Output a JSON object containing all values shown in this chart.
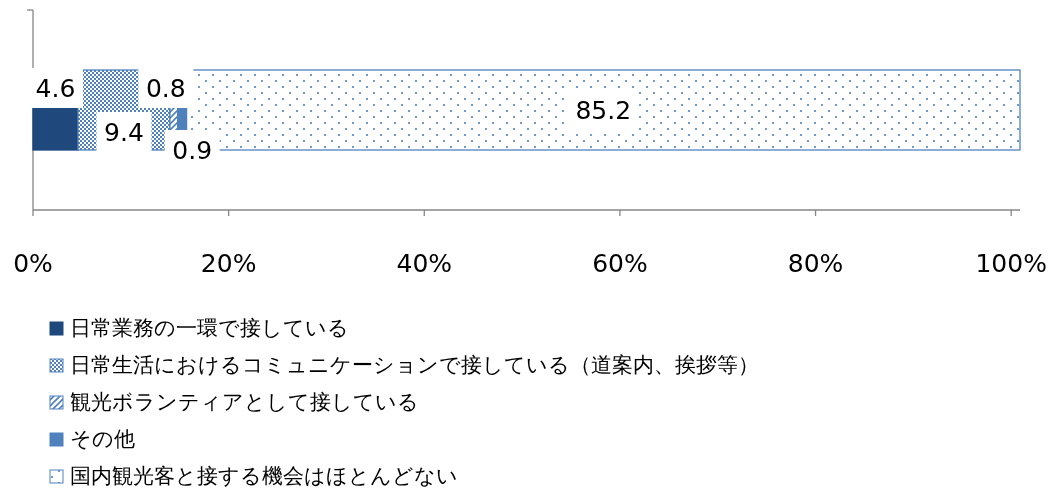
{
  "chart_data": {
    "type": "bar",
    "orientation": "horizontal",
    "stacked": true,
    "categories": [
      null
    ],
    "series": [
      {
        "name": "日常業務の一環で接している",
        "color": "#1f497d",
        "values": [
          4.6
        ]
      },
      {
        "name": "日常生活におけるコミュニケーションで接している（道案内、挨拶等）",
        "color": "#4f81bd",
        "values": [
          9.4
        ]
      },
      {
        "name": "観光ボランティアとして接している",
        "color": "#4f81bd",
        "values": [
          0.8
        ]
      },
      {
        "name": "その他",
        "color": "#4f81bd",
        "values": [
          0.9
        ]
      },
      {
        "name": "国内観光客と接する機会はほとんどない",
        "color": "#4f81bd",
        "values": [
          85.2
        ]
      }
    ],
    "xlim": [
      0,
      100.9
    ],
    "xticks": [
      {
        "value": 0,
        "label": "0%"
      },
      {
        "value": 20,
        "label": "20%"
      },
      {
        "value": 40,
        "label": "40%"
      },
      {
        "value": 60,
        "label": "60%"
      },
      {
        "value": 80,
        "label": "80%"
      },
      {
        "value": 100,
        "label": "100%"
      }
    ],
    "data_labels": true,
    "legend": "bottom",
    "grid": false
  }
}
